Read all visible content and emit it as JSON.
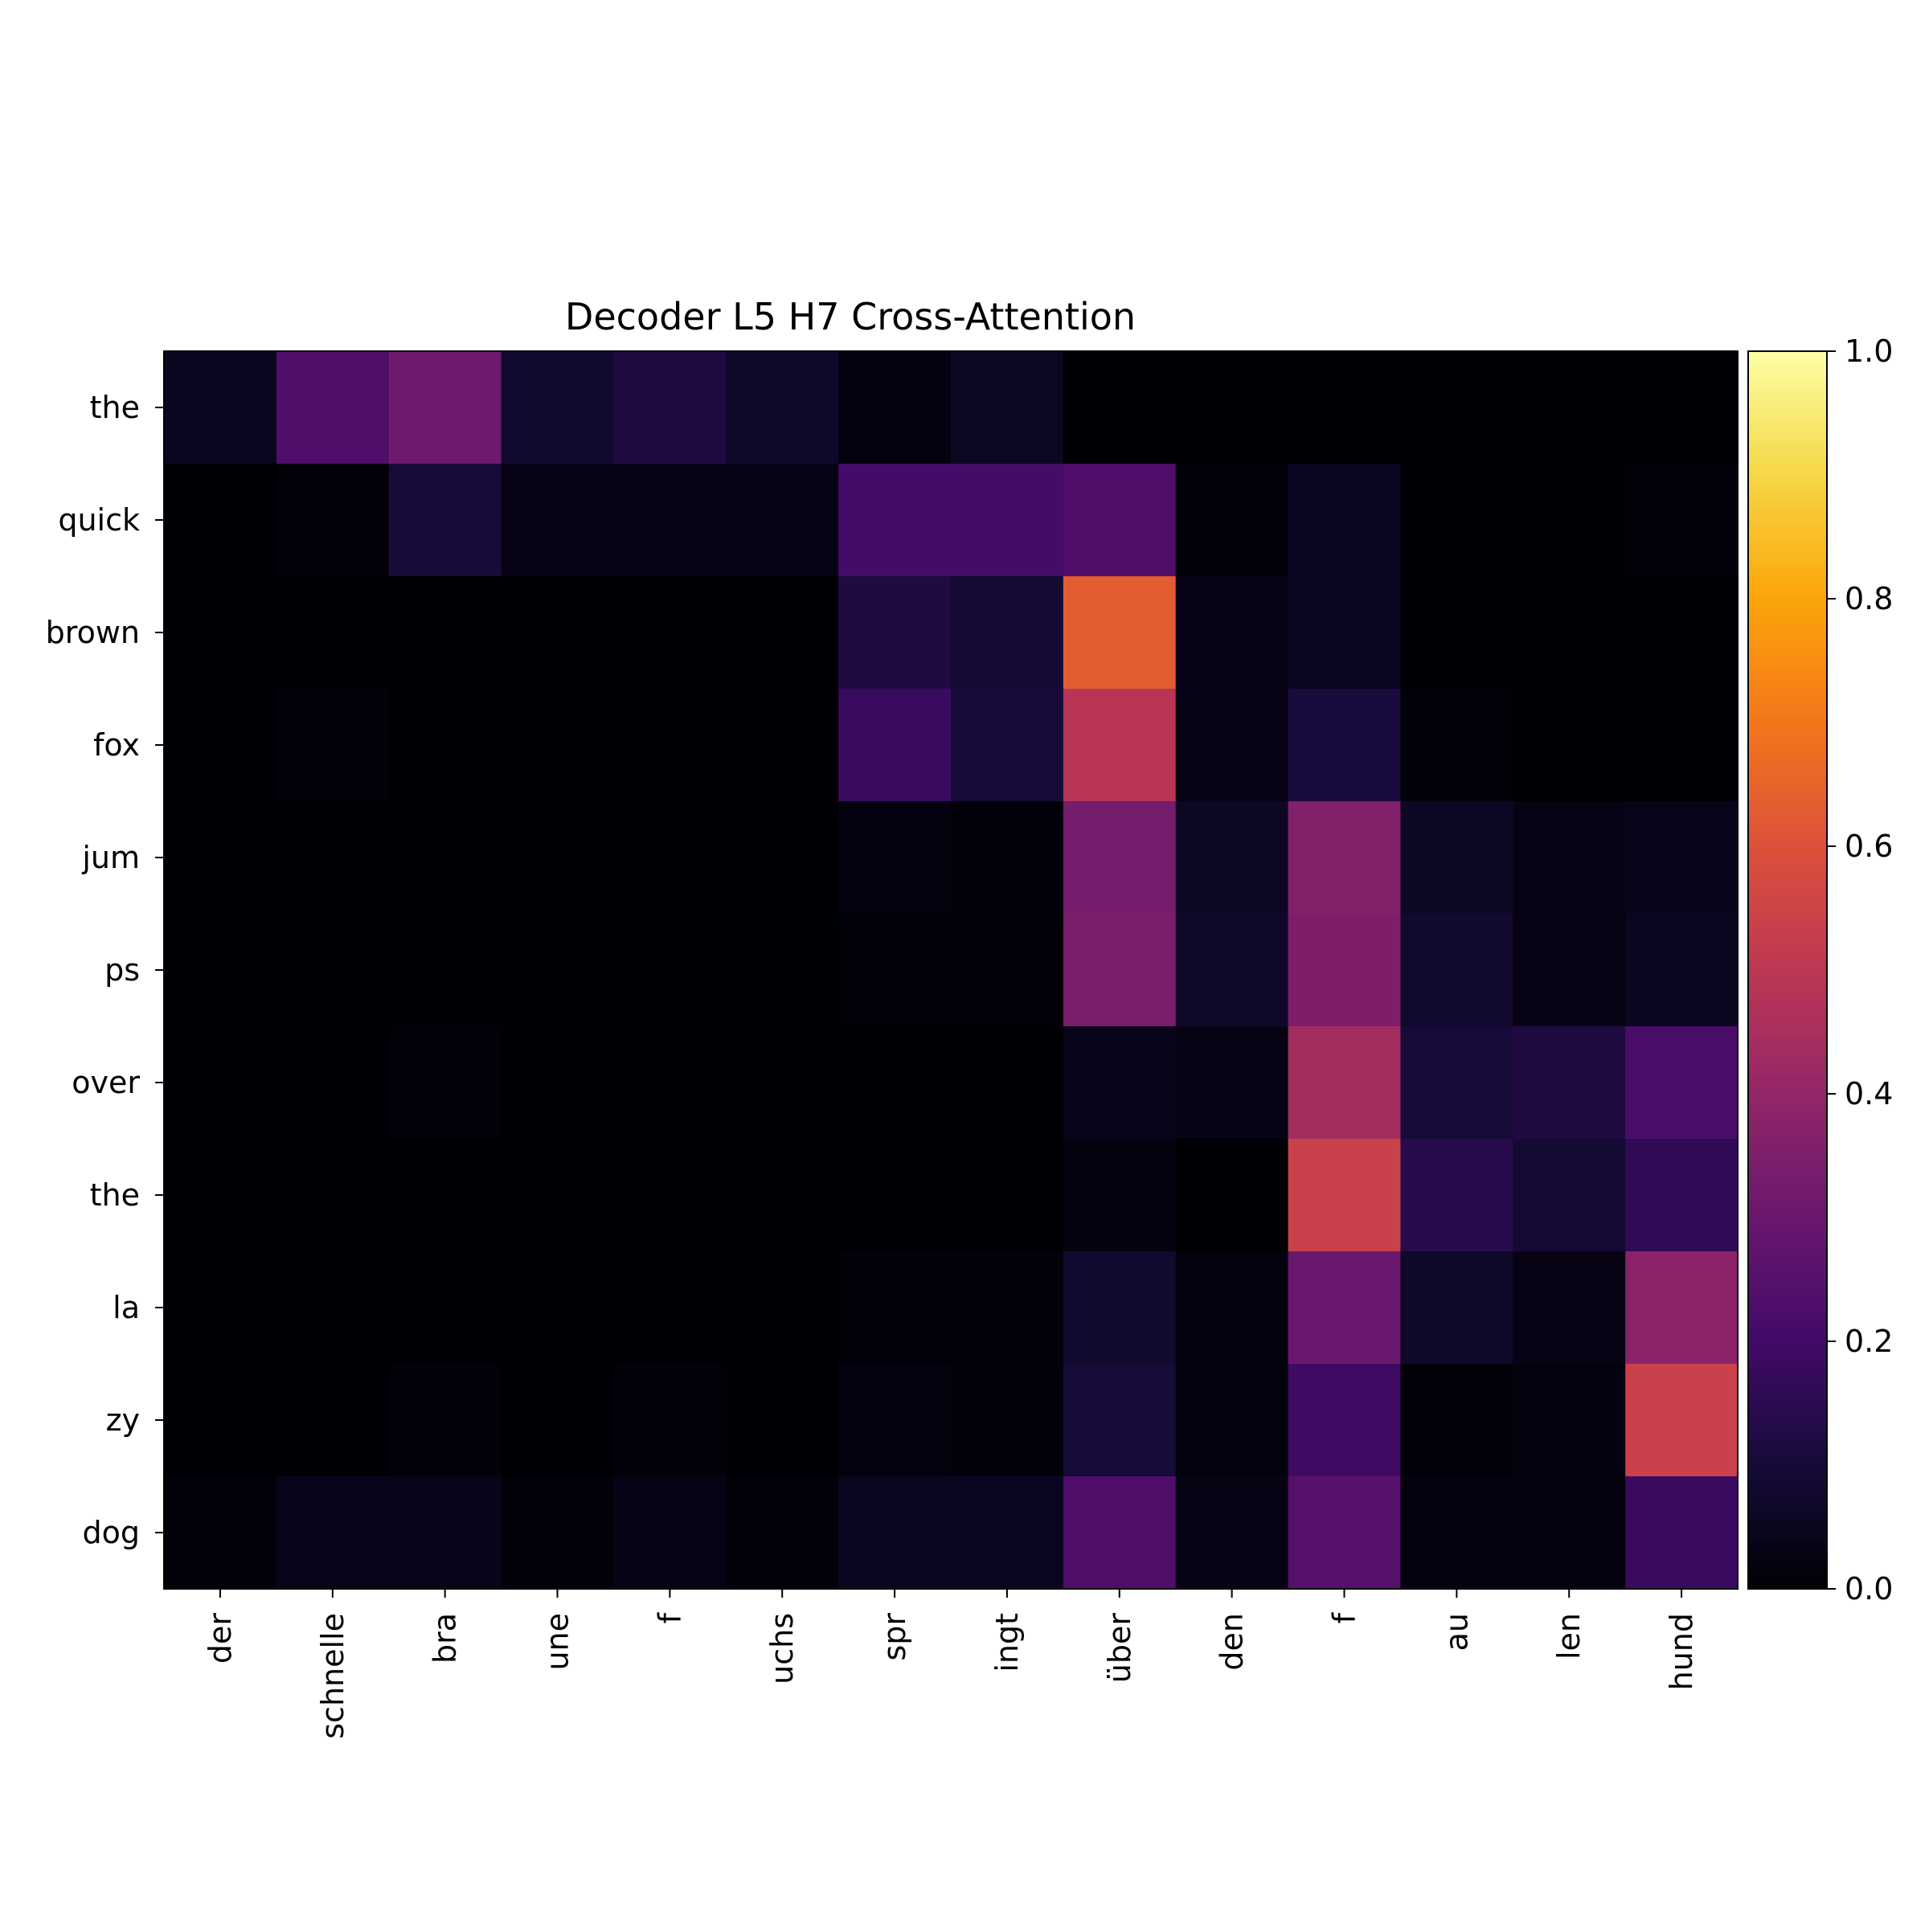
{
  "chart_data": {
    "type": "heatmap",
    "title": "Decoder L5 H7 Cross-Attention",
    "xlabel": "",
    "ylabel": "",
    "x_labels": [
      "der",
      "schnelle",
      "bra",
      "une",
      "f",
      "uchs",
      "spr",
      "ingt",
      "über",
      "den",
      "f",
      "au",
      "len",
      "hund"
    ],
    "y_labels": [
      "the",
      "quick",
      "brown",
      "fox",
      "jum",
      "ps",
      "over",
      "the",
      "la",
      "zy",
      "dog"
    ],
    "values": [
      [
        0.05,
        0.23,
        0.31,
        0.08,
        0.12,
        0.07,
        0.02,
        0.06,
        0.0,
        0.0,
        0.0,
        0.0,
        0.0,
        0.0
      ],
      [
        0.0,
        0.01,
        0.1,
        0.03,
        0.03,
        0.03,
        0.21,
        0.21,
        0.23,
        0.01,
        0.05,
        0.0,
        0.0,
        0.01
      ],
      [
        0.0,
        0.0,
        0.0,
        0.0,
        0.0,
        0.0,
        0.12,
        0.09,
        0.63,
        0.03,
        0.05,
        0.0,
        0.0,
        0.0
      ],
      [
        0.0,
        0.01,
        0.0,
        0.0,
        0.0,
        0.0,
        0.18,
        0.1,
        0.49,
        0.03,
        0.11,
        0.01,
        0.0,
        0.0
      ],
      [
        0.0,
        0.0,
        0.0,
        0.0,
        0.0,
        0.0,
        0.02,
        0.01,
        0.33,
        0.06,
        0.36,
        0.06,
        0.03,
        0.04
      ],
      [
        0.0,
        0.0,
        0.0,
        0.0,
        0.0,
        0.0,
        0.01,
        0.01,
        0.34,
        0.07,
        0.35,
        0.08,
        0.03,
        0.05
      ],
      [
        0.0,
        0.0,
        0.01,
        0.0,
        0.0,
        0.0,
        0.0,
        0.0,
        0.04,
        0.03,
        0.44,
        0.1,
        0.12,
        0.22
      ],
      [
        0.0,
        0.0,
        0.0,
        0.0,
        0.0,
        0.0,
        0.0,
        0.0,
        0.02,
        0.0,
        0.54,
        0.14,
        0.09,
        0.16
      ],
      [
        0.0,
        0.0,
        0.0,
        0.0,
        0.0,
        0.0,
        0.01,
        0.01,
        0.08,
        0.02,
        0.3,
        0.07,
        0.03,
        0.38
      ],
      [
        0.0,
        0.0,
        0.01,
        0.0,
        0.01,
        0.0,
        0.02,
        0.01,
        0.1,
        0.02,
        0.19,
        0.01,
        0.02,
        0.54
      ],
      [
        0.01,
        0.04,
        0.04,
        0.01,
        0.03,
        0.01,
        0.05,
        0.05,
        0.23,
        0.03,
        0.25,
        0.02,
        0.02,
        0.18
      ]
    ],
    "value_range": [
      0.0,
      1.0
    ],
    "colormap": "inferno",
    "colorbar": {
      "ticks": [
        0.0,
        0.2,
        0.4,
        0.6,
        0.8,
        1.0
      ],
      "tick_labels": [
        "0.0",
        "0.2",
        "0.4",
        "0.6",
        "0.8",
        "1.0"
      ]
    },
    "grid": false,
    "legend": "colorbar-right"
  }
}
